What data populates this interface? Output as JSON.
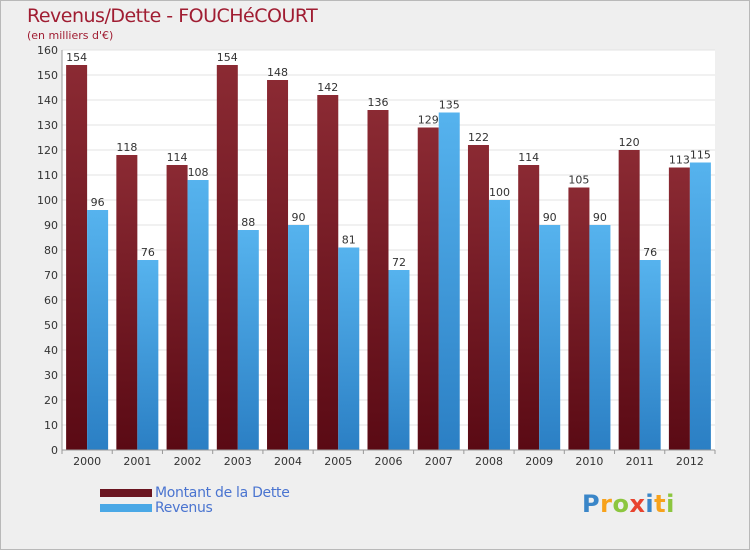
{
  "header": {
    "title": "Revenus/Dette - FOUCHéCOURT",
    "subtitle": "(en milliers d'€)"
  },
  "legend": {
    "debt_label": "Montant de la Dette",
    "revenue_label": "Revenus"
  },
  "logo": {
    "letters": [
      "P",
      "r",
      "o",
      "x",
      "i",
      "t",
      "i"
    ],
    "colors": [
      "#3a86c8",
      "#f7a21b",
      "#8cc63f",
      "#e8432e",
      "#3a86c8",
      "#f7a21b",
      "#8cc63f"
    ]
  },
  "colors": {
    "debt": "#7a1f28",
    "revenue": "#4aa8e6",
    "background": "#efefef"
  },
  "chart_data": {
    "type": "bar",
    "title": "Revenus/Dette - FOUCHéCOURT",
    "ylabel": "(en milliers d'€)",
    "xlabel": "",
    "categories": [
      "2000",
      "2001",
      "2002",
      "2003",
      "2004",
      "2005",
      "2006",
      "2007",
      "2008",
      "2009",
      "2010",
      "2011",
      "2012"
    ],
    "series": [
      {
        "name": "Montant de la Dette",
        "values": [
          154,
          118,
          114,
          154,
          148,
          142,
          136,
          129,
          122,
          114,
          105,
          120,
          113
        ]
      },
      {
        "name": "Revenus",
        "values": [
          96,
          76,
          108,
          88,
          90,
          81,
          72,
          135,
          100,
          90,
          90,
          76,
          115
        ]
      }
    ],
    "ylim": [
      0,
      160
    ],
    "yticks": [
      0,
      10,
      20,
      30,
      40,
      50,
      60,
      70,
      80,
      90,
      100,
      110,
      120,
      130,
      140,
      150,
      160
    ],
    "grid": true,
    "legend_position": "bottom-left"
  }
}
